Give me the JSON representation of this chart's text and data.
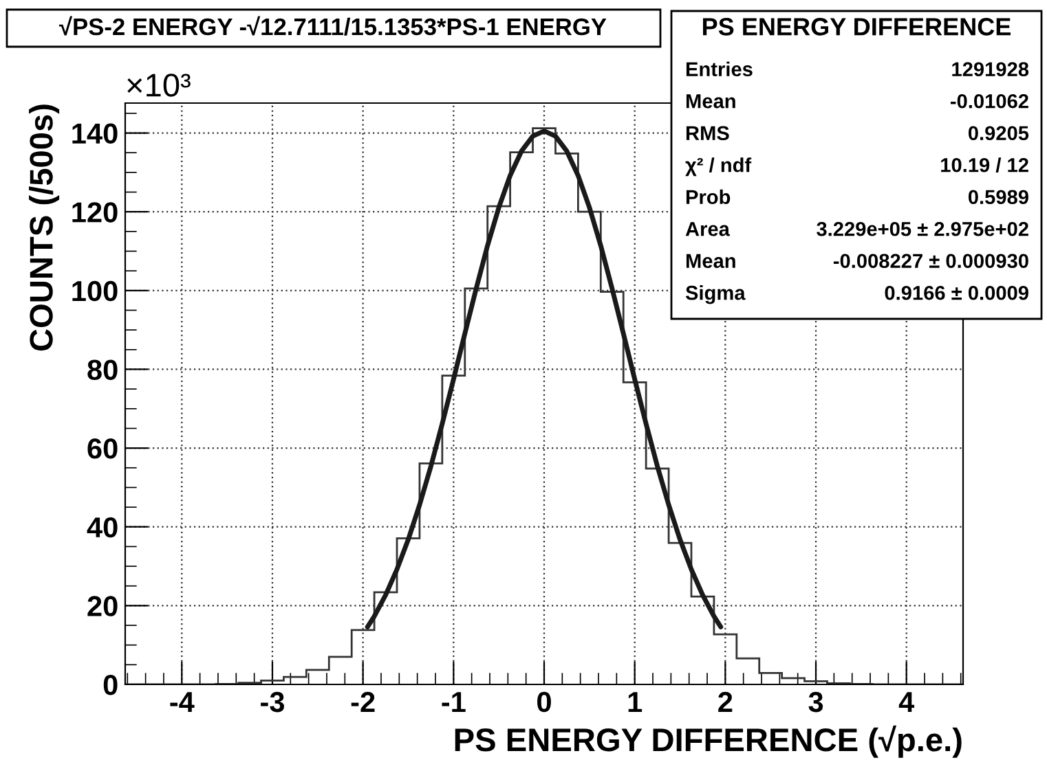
{
  "chart_data": {
    "type": "histogram",
    "title": "√PS-2 ENERGY -√12.7111/15.1353*PS-1 ENERGY",
    "xlabel": "PS ENERGY DIFFERENCE (√p.e.)",
    "ylabel": "COUNTS (/500s)",
    "series": [
      {
        "color": "#333333",
        "bins": [
          -4.625,
          -4.375,
          -4.125,
          -3.875,
          -3.625,
          -3.375,
          -3.125,
          -2.875,
          -2.625,
          -2.375,
          -2.125,
          -1.875,
          -1.625,
          -1.375,
          -1.125,
          -0.875,
          -0.625,
          -0.375,
          -0.125,
          0.125,
          0.375,
          0.625,
          0.875,
          1.125,
          1.375,
          1.625,
          1.875,
          2.125,
          2.375,
          2.625,
          2.875,
          3.125,
          3.375,
          3.625,
          3.875,
          4.125,
          4.375,
          4.625
        ],
        "values": [
          0,
          0,
          0,
          0,
          0.1,
          0.4,
          1.0,
          1.9,
          3.7,
          7,
          13.8,
          23.4,
          37.1,
          56.1,
          78.4,
          100.5,
          121.4,
          135.1,
          141.2,
          134.8,
          120.0,
          99.7,
          76.7,
          54.8,
          35.9,
          22.3,
          12.7,
          6.6,
          2.9,
          1.6,
          0.8,
          0.3,
          0.1,
          0,
          0,
          0,
          0
        ]
      },
      {
        "type": "line",
        "color": "#1a1a1a",
        "x": [
          -1.95,
          -1.875,
          -1.75,
          -1.625,
          -1.5,
          -1.375,
          -1.25,
          -1.125,
          -1.0,
          -0.875,
          -0.75,
          -0.625,
          -0.5,
          -0.375,
          -0.25,
          -0.125,
          0,
          0.125,
          0.25,
          0.375,
          0.5,
          0.625,
          0.75,
          0.875,
          1.0,
          1.125,
          1.25,
          1.375,
          1.5,
          1.625,
          1.75,
          1.875,
          1.95
        ],
        "values": [
          14.6,
          17.3,
          22.7,
          29.2,
          36.8,
          45.6,
          55.4,
          66.2,
          77.5,
          89.1,
          100.5,
          111.4,
          121.1,
          129.2,
          135.4,
          139.2,
          140.5,
          139.2,
          135.4,
          129.2,
          121.1,
          111.4,
          100.5,
          89.1,
          77.5,
          66.2,
          55.4,
          45.6,
          36.8,
          29.2,
          22.7,
          17.3,
          14.6
        ]
      }
    ],
    "xlim": [
      -4.625,
      4.625
    ],
    "xticks": [
      -4,
      -3,
      -2,
      -1,
      0,
      1,
      2,
      3,
      4
    ],
    "ylim": [
      0,
      147.6
    ],
    "yticks": [
      0,
      20,
      40,
      60,
      80,
      100,
      120,
      140
    ],
    "grid": true,
    "annotations": [
      "×10³",
      "PS ENERGY DIFFERENCE",
      "Entries\t1291928",
      "Mean\t-0.01062",
      "RMS\t0.9205",
      "χ² / ndf\t10.19 / 12",
      "Prob\t0.5989",
      "Area\t3.229e+05 ± 2.975e+02",
      "Mean\t-0.008227 ± 0.000930",
      "Sigma\t0.9166 ± 0.0009"
    ]
  }
}
